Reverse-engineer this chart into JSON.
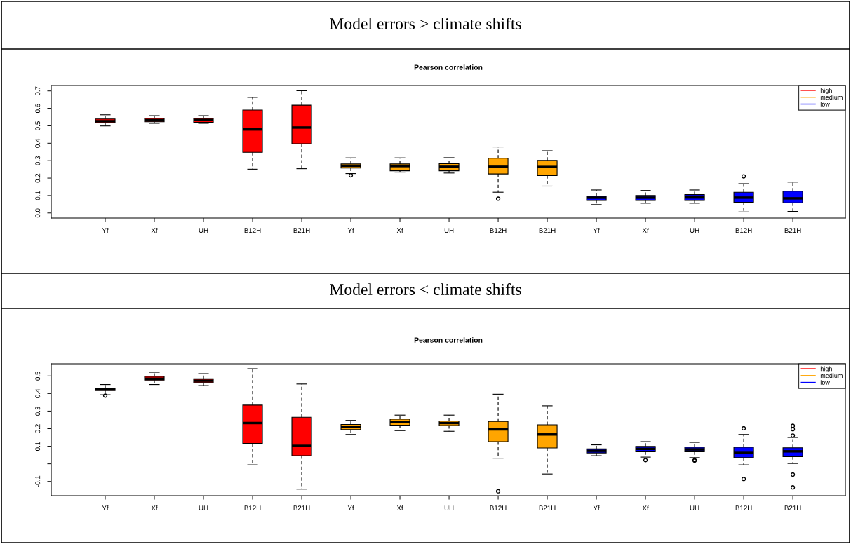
{
  "chart_data": [
    {
      "type": "box",
      "title": "Model errors > climate shifts",
      "subtitle": "Pearson correlation",
      "categories": [
        "Yf",
        "Xf",
        "UH",
        "B12H",
        "B21H",
        "Yf",
        "Xf",
        "UH",
        "B12H",
        "B21H",
        "Yf",
        "Xf",
        "UH",
        "B12H",
        "B21H"
      ],
      "ylim": [
        -0.029,
        0.731
      ],
      "yticks": [
        {
          "value": 0,
          "label": "0.0"
        },
        0.1,
        0.2,
        0.3,
        0.4,
        0.5,
        0.6,
        0.7
      ],
      "grid": false,
      "legend": "top right",
      "series": [
        {
          "name": "high",
          "color": "#ff0000",
          "boxes": [
            {
              "low": 0.499,
              "q1": 0.517,
              "median": 0.526,
              "q3": 0.539,
              "high": 0.563
            },
            {
              "low": 0.514,
              "q1": 0.523,
              "median": 0.531,
              "q3": 0.542,
              "high": 0.558
            },
            {
              "low": 0.514,
              "q1": 0.52,
              "median": 0.533,
              "q3": 0.542,
              "high": 0.558
            },
            {
              "low": 0.251,
              "q1": 0.348,
              "median": 0.479,
              "q3": 0.59,
              "high": 0.663
            },
            {
              "low": 0.254,
              "q1": 0.397,
              "median": 0.49,
              "q3": 0.618,
              "high": 0.701
            },
            null,
            null,
            null,
            null,
            null,
            null,
            null,
            null,
            null,
            null
          ]
        },
        {
          "name": "medium",
          "color": "#ffa500",
          "boxes": [
            null,
            null,
            null,
            null,
            null,
            {
              "low": 0.226,
              "q1": 0.258,
              "median": 0.27,
              "q3": 0.281,
              "high": 0.316,
              "outliers": [
                0.216
              ]
            },
            {
              "low": 0.234,
              "q1": 0.242,
              "median": 0.269,
              "q3": 0.281,
              "high": 0.316
            },
            {
              "low": 0.229,
              "q1": 0.242,
              "median": 0.265,
              "q3": 0.283,
              "high": 0.317
            },
            {
              "low": 0.119,
              "q1": 0.224,
              "median": 0.265,
              "q3": 0.314,
              "high": 0.379,
              "outliers": [
                0.082
              ]
            },
            {
              "low": 0.154,
              "q1": 0.215,
              "median": 0.264,
              "q3": 0.302,
              "high": 0.357
            },
            null,
            null,
            null,
            null,
            null
          ]
        },
        {
          "name": "low",
          "color": "#0000ff",
          "boxes": [
            null,
            null,
            null,
            null,
            null,
            null,
            null,
            null,
            null,
            null,
            {
              "low": 0.048,
              "q1": 0.072,
              "median": 0.088,
              "q3": 0.097,
              "high": 0.132
            },
            {
              "low": 0.056,
              "q1": 0.072,
              "median": 0.088,
              "q3": 0.1,
              "high": 0.129
            },
            {
              "low": 0.056,
              "q1": 0.072,
              "median": 0.089,
              "q3": 0.105,
              "high": 0.132
            },
            {
              "low": 0.006,
              "q1": 0.061,
              "median": 0.088,
              "q3": 0.119,
              "high": 0.168,
              "outliers": [
                0.21
              ]
            },
            {
              "low": 0.009,
              "q1": 0.058,
              "median": 0.084,
              "q3": 0.125,
              "high": 0.177
            }
          ]
        }
      ]
    },
    {
      "type": "box",
      "title": "Model errors < climate shifts",
      "subtitle": "Pearson correlation",
      "categories": [
        "Yf",
        "Xf",
        "UH",
        "B12H",
        "B21H",
        "Yf",
        "Xf",
        "UH",
        "B12H",
        "B21H",
        "Yf",
        "Xf",
        "UH",
        "B12H",
        "B21H"
      ],
      "ylim": [
        -0.181,
        0.569
      ],
      "yticks": [
        -0.1,
        {
          "value": 0.0,
          "label": null
        },
        0.1,
        0.2,
        0.3,
        0.4,
        0.5
      ],
      "grid": false,
      "legend": "top right",
      "series": [
        {
          "name": "high",
          "color": "#ff0000",
          "boxes": [
            {
              "low": 0.393,
              "q1": 0.417,
              "median": 0.425,
              "q3": 0.431,
              "high": 0.451,
              "outliers": [
                0.388
              ]
            },
            {
              "low": 0.451,
              "q1": 0.476,
              "median": 0.484,
              "q3": 0.497,
              "high": 0.521
            },
            {
              "low": 0.445,
              "q1": 0.462,
              "median": 0.473,
              "q3": 0.484,
              "high": 0.513
            },
            {
              "low": -0.006,
              "q1": 0.116,
              "median": 0.232,
              "q3": 0.334,
              "high": 0.541
            },
            {
              "low": -0.144,
              "q1": 0.046,
              "median": 0.102,
              "q3": 0.265,
              "high": 0.454
            },
            null,
            null,
            null,
            null,
            null,
            null,
            null,
            null,
            null,
            null
          ]
        },
        {
          "name": "medium",
          "color": "#ffa500",
          "boxes": [
            null,
            null,
            null,
            null,
            null,
            {
              "low": 0.167,
              "q1": 0.195,
              "median": 0.211,
              "q3": 0.224,
              "high": 0.247
            },
            {
              "low": 0.189,
              "q1": 0.22,
              "median": 0.238,
              "q3": 0.254,
              "high": 0.277
            },
            {
              "low": 0.185,
              "q1": 0.218,
              "median": 0.232,
              "q3": 0.244,
              "high": 0.277
            },
            {
              "low": 0.032,
              "q1": 0.126,
              "median": 0.196,
              "q3": 0.241,
              "high": 0.396,
              "outliers": [
                -0.156
              ]
            },
            {
              "low": -0.058,
              "q1": 0.09,
              "median": 0.167,
              "q3": 0.222,
              "high": 0.33
            },
            null,
            null,
            null,
            null,
            null
          ]
        },
        {
          "name": "low",
          "color": "#0000ff",
          "boxes": [
            null,
            null,
            null,
            null,
            null,
            null,
            null,
            null,
            null,
            null,
            {
              "low": 0.046,
              "q1": 0.062,
              "median": 0.074,
              "q3": 0.085,
              "high": 0.108
            },
            {
              "low": 0.038,
              "q1": 0.069,
              "median": 0.085,
              "q3": 0.099,
              "high": 0.126,
              "outliers": [
                0.021
              ]
            },
            {
              "low": 0.035,
              "q1": 0.069,
              "median": 0.082,
              "q3": 0.094,
              "high": 0.122,
              "outliers": [
                0.021,
                0.018
              ]
            },
            {
              "low": -0.006,
              "q1": 0.035,
              "median": 0.062,
              "q3": 0.094,
              "high": 0.167,
              "outliers": [
                0.202,
                -0.086
              ]
            },
            {
              "low": 0.002,
              "q1": 0.041,
              "median": 0.071,
              "q3": 0.091,
              "high": 0.15,
              "outliers": [
                0.216,
                0.197,
                0.161,
                -0.061,
                -0.134
              ]
            }
          ]
        }
      ]
    }
  ]
}
